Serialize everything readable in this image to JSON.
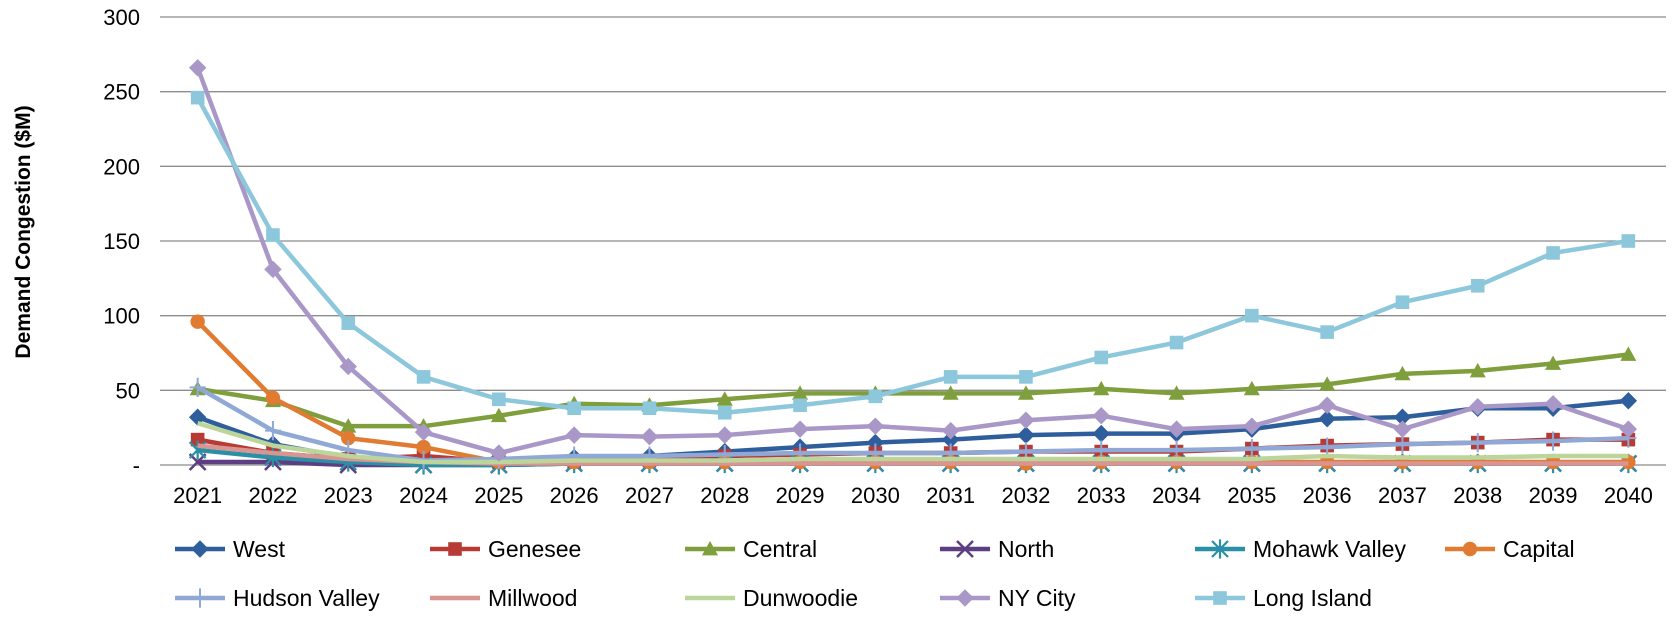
{
  "chart_data": {
    "type": "line",
    "title": "",
    "xlabel": "",
    "ylabel": "Demand Congestion ($M)",
    "ylim": [
      0,
      300
    ],
    "yticks": [
      0,
      50,
      100,
      150,
      200,
      250,
      300
    ],
    "ytick_labels": [
      "-",
      "50",
      "100",
      "150",
      "200",
      "250",
      "300"
    ],
    "grid": "horizontal",
    "legend_position": "bottom",
    "categories": [
      "2021",
      "2022",
      "2023",
      "2024",
      "2025",
      "2026",
      "2027",
      "2028",
      "2029",
      "2030",
      "2031",
      "2032",
      "2033",
      "2034",
      "2035",
      "2036",
      "2037",
      "2038",
      "2039",
      "2040"
    ],
    "series": [
      {
        "name": "West",
        "color": "#2E5E9C",
        "marker": "diamond",
        "values": [
          32,
          14,
          5,
          2,
          2,
          5,
          6,
          9,
          12,
          15,
          17,
          20,
          21,
          21,
          24,
          31,
          32,
          38,
          38,
          43
        ]
      },
      {
        "name": "Genesee",
        "color": "#B83A35",
        "marker": "square",
        "values": [
          17,
          8,
          4,
          6,
          2,
          2,
          3,
          6,
          7,
          8,
          8,
          9,
          9,
          9,
          11,
          13,
          14,
          15,
          17,
          17
        ]
      },
      {
        "name": "Central",
        "color": "#7F9E3C",
        "marker": "triangle",
        "values": [
          51,
          43,
          26,
          26,
          33,
          41,
          40,
          44,
          48,
          48,
          48,
          48,
          51,
          48,
          51,
          54,
          61,
          63,
          68,
          74
        ]
      },
      {
        "name": "North",
        "color": "#5E3E82",
        "marker": "x",
        "values": [
          2,
          2,
          0,
          0,
          0,
          1,
          1,
          1,
          1,
          1,
          1,
          1,
          1,
          1,
          1,
          1,
          1,
          1,
          1,
          1
        ]
      },
      {
        "name": "Mohawk Valley",
        "color": "#2B8FA6",
        "marker": "asterisk",
        "values": [
          10,
          5,
          2,
          0,
          0,
          1,
          1,
          1,
          1,
          1,
          1,
          1,
          1,
          1,
          1,
          1,
          1,
          1,
          1,
          1
        ]
      },
      {
        "name": "Capital",
        "color": "#E07B31",
        "marker": "circle",
        "values": [
          96,
          45,
          18,
          12,
          2,
          2,
          2,
          2,
          2,
          2,
          2,
          1,
          2,
          2,
          2,
          2,
          2,
          2,
          2,
          2
        ]
      },
      {
        "name": "Hudson Valley",
        "color": "#8FA8D6",
        "marker": "plus",
        "values": [
          52,
          23,
          10,
          3,
          4,
          6,
          6,
          7,
          8,
          8,
          8,
          9,
          10,
          10,
          11,
          12,
          14,
          15,
          16,
          18
        ]
      },
      {
        "name": "Millwood",
        "color": "#D99592",
        "marker": "none",
        "values": [
          13,
          8,
          4,
          2,
          1,
          1,
          1,
          1,
          1,
          1,
          1,
          1,
          1,
          1,
          1,
          1,
          1,
          1,
          1,
          1
        ]
      },
      {
        "name": "Dunwoodie",
        "color": "#BCD59B",
        "marker": "none",
        "values": [
          28,
          13,
          6,
          2,
          2,
          3,
          3,
          3,
          4,
          4,
          4,
          4,
          4,
          4,
          4,
          6,
          5,
          5,
          6,
          6
        ]
      },
      {
        "name": "NY City",
        "color": "#A897C7",
        "marker": "diamond",
        "values": [
          266,
          131,
          66,
          22,
          8,
          20,
          19,
          20,
          24,
          26,
          23,
          30,
          33,
          24,
          26,
          40,
          24,
          39,
          41,
          24
        ]
      },
      {
        "name": "Long Island",
        "color": "#8CC7DB",
        "marker": "square",
        "values": [
          246,
          154,
          95,
          59,
          44,
          38,
          38,
          35,
          40,
          46,
          59,
          59,
          72,
          82,
          100,
          89,
          109,
          120,
          142,
          150
        ]
      }
    ]
  }
}
